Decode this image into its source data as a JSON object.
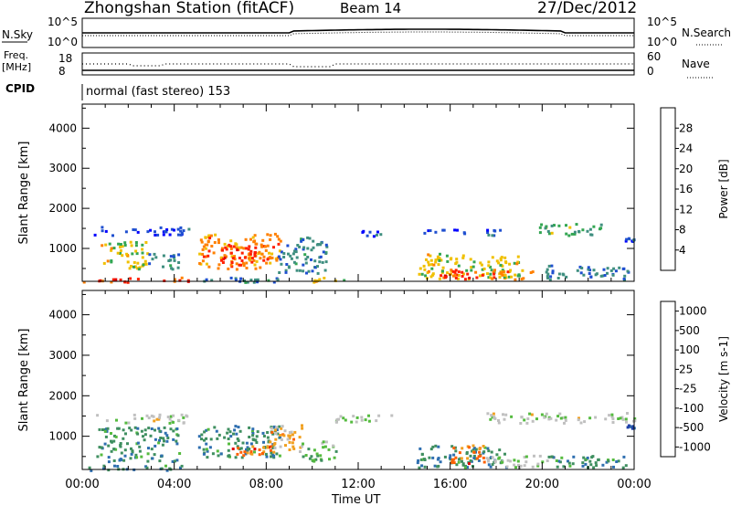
{
  "header": {
    "station": "Zhongshan Station (fitACF)",
    "beam": "Beam 14",
    "date": "27/Dec/2012"
  },
  "sky_panel": {
    "left_label": "N.Sky",
    "right_label": "N.Search",
    "left_ticks": [
      "10^5",
      "10^0"
    ],
    "right_ticks": [
      "10^5",
      "10^0"
    ]
  },
  "freq_panel": {
    "left_label_1": "Freq.",
    "left_label_2": "[MHz]",
    "right_label": "Nave",
    "left_ticks": [
      "18",
      "8"
    ],
    "right_ticks": [
      "60",
      "0"
    ]
  },
  "cpid_panel": {
    "label": "CPID",
    "text": "normal (fast stereo) 153"
  },
  "chart_data": [
    {
      "type": "heatmap",
      "name": "power",
      "ylabel": "Slant Range [km]",
      "yticks": [
        1000,
        2000,
        3000,
        4000
      ],
      "ylim": [
        180,
        4600
      ],
      "xlim_hours": [
        0,
        24
      ],
      "colorbar_label": "Power [dB]",
      "colorbar_ticks": [
        4,
        8,
        12,
        16,
        20,
        24,
        28
      ],
      "colorbar_colors": [
        "#0000ff",
        "#1f4fd0",
        "#3f8f80",
        "#33a652",
        "#f0c000",
        "#ff8000",
        "#ff2000",
        "#e00000"
      ],
      "regions": [
        {
          "t0": 0.5,
          "t1": 4.6,
          "r0": 1350,
          "r1": 1560,
          "level": 1
        },
        {
          "t0": 0.8,
          "t1": 2.8,
          "r0": 500,
          "r1": 1200,
          "level": 4
        },
        {
          "t0": 2.8,
          "t1": 4.2,
          "r0": 500,
          "r1": 900,
          "level": 2
        },
        {
          "t0": 5.0,
          "t1": 8.6,
          "r0": 500,
          "r1": 1400,
          "level": 5
        },
        {
          "t0": 6.0,
          "t1": 8.0,
          "r0": 600,
          "r1": 1100,
          "level": 6
        },
        {
          "t0": 8.5,
          "t1": 10.6,
          "r0": 400,
          "r1": 1300,
          "level": 2
        },
        {
          "t0": 12.0,
          "t1": 13.0,
          "r0": 1300,
          "r1": 1500,
          "level": 1
        },
        {
          "t0": 14.5,
          "t1": 19.0,
          "r0": 250,
          "r1": 900,
          "level": 4
        },
        {
          "t0": 15.0,
          "t1": 17.5,
          "r0": 250,
          "r1": 500,
          "level": 6
        },
        {
          "t0": 17.5,
          "t1": 19.7,
          "r0": 250,
          "r1": 500,
          "level": 5
        },
        {
          "t0": 14.8,
          "t1": 16.6,
          "r0": 1350,
          "r1": 1500,
          "level": 1
        },
        {
          "t0": 17.3,
          "t1": 18.2,
          "r0": 1350,
          "r1": 1500,
          "level": 1
        },
        {
          "t0": 19.8,
          "t1": 22.6,
          "r0": 1350,
          "r1": 1650,
          "level": 3
        },
        {
          "t0": 20.0,
          "t1": 23.8,
          "r0": 250,
          "r1": 600,
          "level": 2
        },
        {
          "t0": 23.5,
          "t1": 24.0,
          "r0": 1200,
          "r1": 1300,
          "level": 1
        },
        {
          "t0": 0.0,
          "t1": 4.6,
          "r0": 180,
          "r1": 300,
          "level": 6
        },
        {
          "t0": 5.0,
          "t1": 9.5,
          "r0": 180,
          "r1": 300,
          "level": 2
        },
        {
          "t0": 10.0,
          "t1": 11.5,
          "r0": 180,
          "r1": 300,
          "level": 4
        }
      ]
    },
    {
      "type": "heatmap",
      "name": "velocity",
      "ylabel": "Slant Range [km]",
      "yticks": [
        1000,
        2000,
        3000,
        4000
      ],
      "ylim": [
        180,
        4600
      ],
      "xlim_hours": [
        0,
        24
      ],
      "xtick_labels": [
        "00:00",
        "04:00",
        "08:00",
        "12:00",
        "16:00",
        "20:00",
        "00:00"
      ],
      "xlabel": "Time UT",
      "colorbar_label": "Velocity [m s-1]",
      "colorbar_ticks": [
        1000,
        500,
        100,
        25,
        -25,
        -100,
        -500,
        -1000
      ],
      "colorbar_colors": [
        "#1f3fa8",
        "#2f6fb0",
        "#3f8f60",
        "#55bb3f",
        "#c0c0c0",
        "#f0a020",
        "#ff6000",
        "#e00000"
      ],
      "regions": [
        {
          "t0": 0.5,
          "t1": 4.6,
          "r0": 1350,
          "r1": 1560,
          "level": 4
        },
        {
          "t0": 0.6,
          "t1": 4.2,
          "r0": 400,
          "r1": 1250,
          "level": 2
        },
        {
          "t0": 0.0,
          "t1": 4.6,
          "r0": 180,
          "r1": 300,
          "level": 2
        },
        {
          "t0": 5.0,
          "t1": 8.6,
          "r0": 500,
          "r1": 1300,
          "level": 2
        },
        {
          "t0": 6.5,
          "t1": 8.6,
          "r0": 550,
          "r1": 800,
          "level": 6
        },
        {
          "t0": 8.0,
          "t1": 9.6,
          "r0": 600,
          "r1": 1300,
          "level": 5
        },
        {
          "t0": 9.5,
          "t1": 11.0,
          "r0": 400,
          "r1": 900,
          "level": 3
        },
        {
          "t0": 11.0,
          "t1": 13.5,
          "r0": 1350,
          "r1": 1550,
          "level": 4
        },
        {
          "t0": 14.5,
          "t1": 18.5,
          "r0": 250,
          "r1": 800,
          "level": 2
        },
        {
          "t0": 16.0,
          "t1": 17.5,
          "r0": 350,
          "r1": 800,
          "level": 6
        },
        {
          "t0": 17.5,
          "t1": 20.5,
          "r0": 250,
          "r1": 550,
          "level": 4
        },
        {
          "t0": 20.0,
          "t1": 23.8,
          "r0": 250,
          "r1": 550,
          "level": 2
        },
        {
          "t0": 17.5,
          "t1": 24.0,
          "r0": 1350,
          "r1": 1600,
          "level": 4
        },
        {
          "t0": 23.5,
          "t1": 24.0,
          "r0": 1200,
          "r1": 1300,
          "level": 1
        }
      ]
    }
  ]
}
